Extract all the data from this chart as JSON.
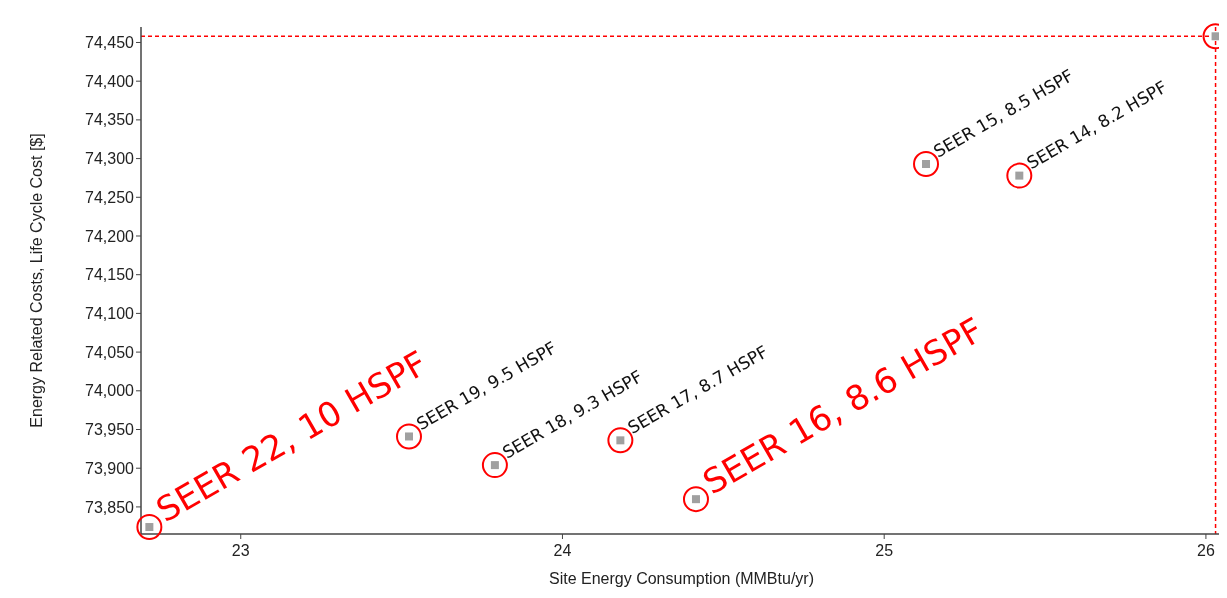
{
  "chart_data": {
    "type": "scatter",
    "xlabel": "Site Energy Consumption (MMBtu/yr)",
    "ylabel": "Energy Related Costs, Life Cycle Cost [$]",
    "xlim": [
      22.69,
      26.05
    ],
    "xticks": [
      23,
      24,
      25,
      26
    ],
    "ylim": [
      73815,
      74470
    ],
    "yticks": [
      {
        "value": 73850,
        "label": "73,850"
      },
      {
        "value": 73900,
        "label": "73,900"
      },
      {
        "value": 73950,
        "label": "73,950"
      },
      {
        "value": 74000,
        "label": "74,000"
      },
      {
        "value": 74050,
        "label": "74,050"
      },
      {
        "value": 74100,
        "label": "74,100"
      },
      {
        "value": 74150,
        "label": "74,150"
      },
      {
        "value": 74200,
        "label": "74,200"
      },
      {
        "value": 74250,
        "label": "74,250"
      },
      {
        "value": 74300,
        "label": "74,300"
      },
      {
        "value": 74350,
        "label": "74,350"
      },
      {
        "value": 74400,
        "label": "74,400"
      },
      {
        "value": 74450,
        "label": "74,450"
      }
    ],
    "series": [
      {
        "color": "#a0a0a0",
        "x": [
          22.716,
          23.523,
          23.79,
          24.18,
          24.415,
          25.13,
          25.42,
          26.03
        ],
        "values": [
          73824,
          73941,
          73904,
          73936,
          73860,
          74293,
          74278,
          74458
        ]
      }
    ],
    "marker": "square",
    "grid": false,
    "ref_lines": [
      {
        "axis": "x",
        "value": 26.03,
        "color": "#ff0000",
        "line_style": "dashed"
      },
      {
        "axis": "y",
        "value": 74458,
        "color": "#ff0000",
        "line_style": "dashed"
      }
    ],
    "annotations": [
      {
        "text": "SEER 22, 10 HSPF",
        "x": 22.716,
        "y": 73824
      },
      {
        "text": "SEER 19, 9.5 HSPF",
        "x": 23.523,
        "y": 73941
      },
      {
        "text": "SEER 18, 9.3 HSPF",
        "x": 23.79,
        "y": 73904
      },
      {
        "text": "SEER 17, 8.7 HSPF",
        "x": 24.18,
        "y": 73936
      },
      {
        "text": "SEER 16, 8.6 HSPF",
        "x": 24.415,
        "y": 73860
      },
      {
        "text": "SEER 15, 8.5 HSPF",
        "x": 25.13,
        "y": 74293
      },
      {
        "text": "SEER 14, 8.2 HSPF",
        "x": 25.42,
        "y": 74278
      }
    ]
  }
}
